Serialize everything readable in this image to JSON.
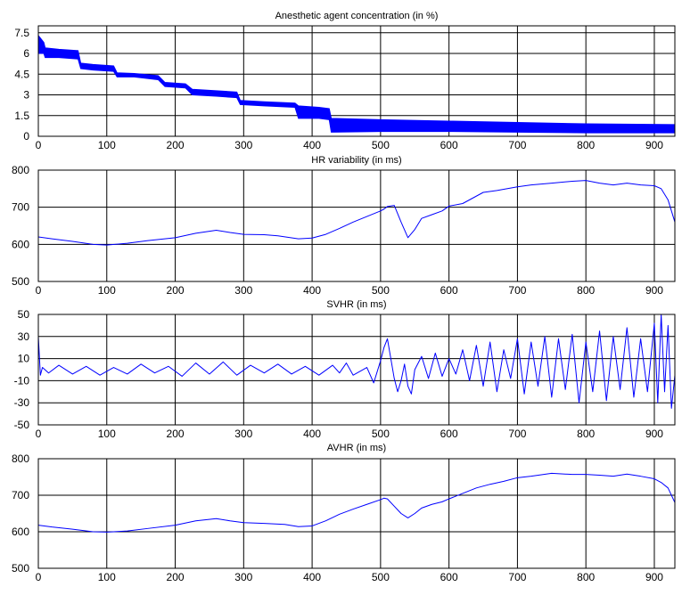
{
  "chart_data": [
    {
      "type": "line",
      "title": "Anesthetic agent concentration (in %)",
      "xlim": [
        0,
        930
      ],
      "ylim": [
        0,
        8
      ],
      "xticks": [
        0,
        100,
        200,
        300,
        400,
        500,
        600,
        700,
        800,
        900
      ],
      "yticks": [
        0,
        1.5,
        3,
        4.5,
        6,
        7.5
      ],
      "grid": true,
      "series": [
        {
          "color": "#0000ff",
          "x": [
            0,
            8,
            10,
            30,
            58,
            62,
            80,
            110,
            115,
            140,
            175,
            185,
            215,
            225,
            260,
            290,
            295,
            330,
            375,
            380,
            410,
            425,
            428,
            500,
            600,
            700,
            800,
            930
          ],
          "y_upper": [
            7.3,
            6.8,
            6.4,
            6.3,
            6.2,
            5.3,
            5.2,
            5.1,
            4.6,
            4.55,
            4.4,
            3.9,
            3.8,
            3.4,
            3.3,
            3.2,
            2.6,
            2.5,
            2.4,
            2.2,
            2.1,
            2.0,
            1.3,
            1.2,
            1.1,
            1.0,
            0.9,
            0.85
          ],
          "y_lower": [
            6.0,
            6.0,
            5.7,
            5.7,
            5.6,
            4.9,
            4.8,
            4.7,
            4.3,
            4.3,
            4.1,
            3.6,
            3.5,
            3.0,
            2.9,
            2.8,
            2.3,
            2.2,
            2.1,
            1.3,
            1.3,
            1.2,
            0.3,
            0.35,
            0.35,
            0.3,
            0.25,
            0.25
          ]
        }
      ]
    },
    {
      "type": "line",
      "title": "HR variability (in ms)",
      "xlim": [
        0,
        930
      ],
      "ylim": [
        500,
        800
      ],
      "xticks": [
        0,
        100,
        200,
        300,
        400,
        500,
        600,
        700,
        800,
        900
      ],
      "yticks": [
        500,
        600,
        700,
        800
      ],
      "grid": true,
      "series": [
        {
          "color": "#0000ff",
          "x": [
            0,
            20,
            50,
            80,
            100,
            130,
            160,
            200,
            230,
            260,
            280,
            300,
            330,
            350,
            380,
            400,
            420,
            440,
            460,
            480,
            500,
            505,
            510,
            520,
            530,
            540,
            550,
            560,
            575,
            590,
            600,
            620,
            635,
            650,
            670,
            700,
            720,
            750,
            780,
            800,
            820,
            840,
            860,
            880,
            900,
            910,
            920,
            930
          ],
          "y": [
            620,
            615,
            608,
            600,
            598,
            603,
            610,
            618,
            630,
            638,
            632,
            627,
            626,
            623,
            615,
            617,
            627,
            643,
            660,
            675,
            690,
            695,
            702,
            705,
            660,
            618,
            640,
            670,
            680,
            690,
            703,
            710,
            725,
            740,
            745,
            755,
            760,
            765,
            770,
            772,
            765,
            760,
            765,
            760,
            758,
            750,
            720,
            660
          ]
        }
      ]
    },
    {
      "type": "line",
      "title": "SVHR (in ms)",
      "xlim": [
        0,
        930
      ],
      "ylim": [
        -50,
        50
      ],
      "xticks": [
        0,
        100,
        200,
        300,
        400,
        500,
        600,
        700,
        800,
        900
      ],
      "yticks": [
        -50,
        -30,
        -10,
        10,
        30,
        50
      ],
      "grid": true,
      "series": [
        {
          "color": "#0000ff",
          "x": [
            0,
            3,
            6,
            15,
            30,
            50,
            70,
            90,
            110,
            130,
            150,
            170,
            190,
            210,
            230,
            250,
            270,
            290,
            310,
            330,
            350,
            370,
            390,
            410,
            430,
            440,
            450,
            460,
            480,
            490,
            500,
            505,
            510,
            515,
            520,
            525,
            530,
            535,
            540,
            545,
            550,
            560,
            570,
            580,
            590,
            600,
            610,
            620,
            630,
            640,
            650,
            660,
            670,
            680,
            690,
            700,
            710,
            720,
            730,
            740,
            750,
            760,
            770,
            780,
            790,
            800,
            810,
            820,
            830,
            840,
            850,
            860,
            870,
            880,
            890,
            900,
            905,
            910,
            915,
            920,
            925,
            930
          ],
          "y": [
            30,
            -5,
            2,
            -3,
            4,
            -4,
            3,
            -5,
            2,
            -4,
            5,
            -3,
            3,
            -6,
            6,
            -4,
            7,
            -5,
            4,
            -3,
            5,
            -4,
            3,
            -5,
            4,
            -3,
            6,
            -5,
            2,
            -12,
            8,
            20,
            28,
            10,
            -8,
            -20,
            -10,
            5,
            -15,
            -22,
            0,
            12,
            -8,
            15,
            -6,
            10,
            -4,
            18,
            -10,
            22,
            -15,
            25,
            -20,
            18,
            -8,
            28,
            -22,
            25,
            -15,
            30,
            -25,
            28,
            -18,
            32,
            -30,
            25,
            -20,
            35,
            -28,
            30,
            -18,
            38,
            -25,
            28,
            -20,
            42,
            -30,
            50,
            -20,
            40,
            -35,
            -5
          ]
        }
      ]
    },
    {
      "type": "line",
      "title": "AVHR (in ms)",
      "xlim": [
        0,
        930
      ],
      "ylim": [
        500,
        800
      ],
      "xticks": [
        0,
        100,
        200,
        300,
        400,
        500,
        600,
        700,
        800,
        900
      ],
      "yticks": [
        500,
        600,
        700,
        800
      ],
      "grid": true,
      "series": [
        {
          "color": "#0000ff",
          "x": [
            0,
            20,
            50,
            80,
            100,
            130,
            160,
            200,
            230,
            260,
            280,
            300,
            330,
            360,
            380,
            400,
            420,
            440,
            460,
            480,
            500,
            505,
            510,
            520,
            530,
            540,
            550,
            560,
            575,
            590,
            600,
            620,
            640,
            660,
            680,
            700,
            720,
            750,
            780,
            800,
            820,
            840,
            860,
            880,
            900,
            910,
            920,
            930
          ],
          "y": [
            618,
            613,
            607,
            600,
            599,
            602,
            609,
            618,
            630,
            636,
            630,
            625,
            623,
            620,
            614,
            616,
            630,
            648,
            662,
            675,
            688,
            692,
            690,
            670,
            650,
            638,
            650,
            665,
            675,
            682,
            690,
            705,
            720,
            730,
            738,
            748,
            752,
            760,
            757,
            757,
            755,
            752,
            758,
            752,
            745,
            735,
            720,
            680
          ]
        }
      ]
    }
  ]
}
